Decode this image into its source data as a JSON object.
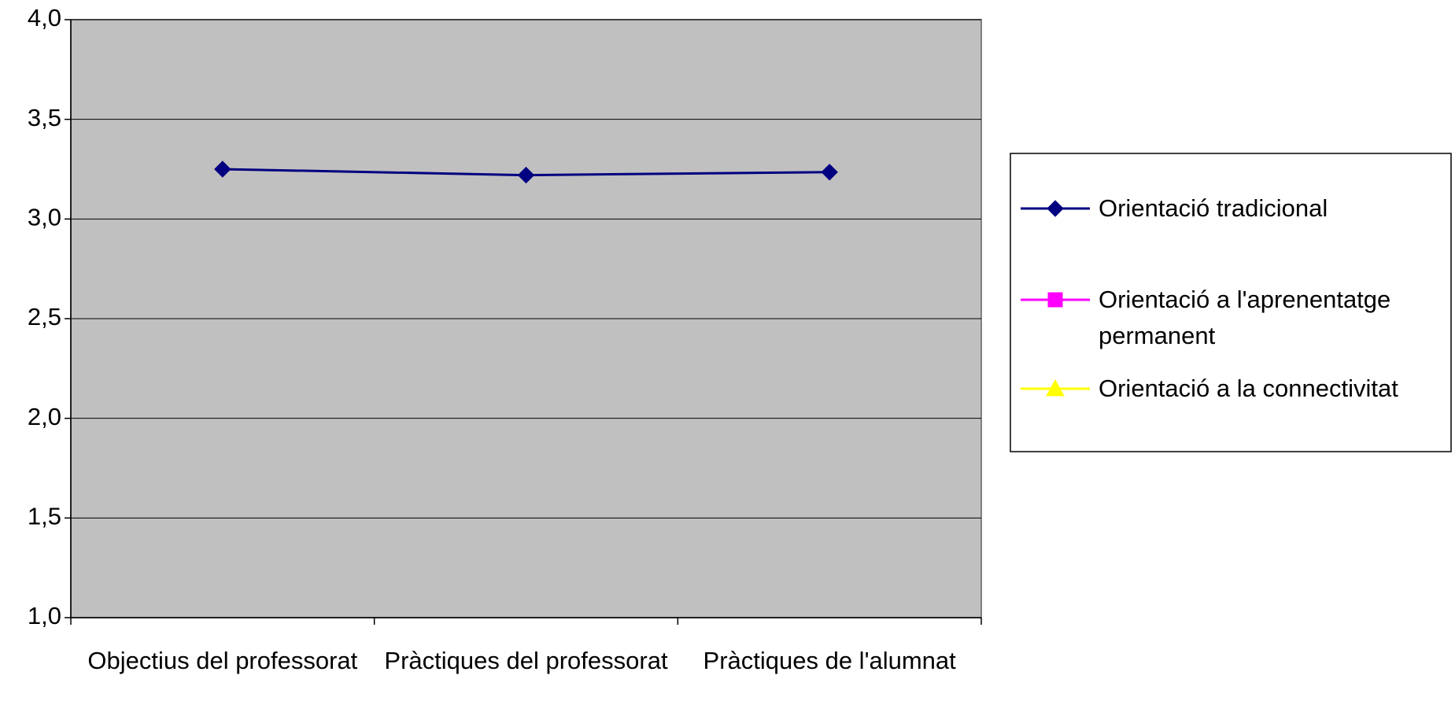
{
  "chart_data": {
    "type": "line",
    "categories": [
      "Objectius del professorat",
      "Pràctiques del professorat",
      "Pràctiques de l'alumnat"
    ],
    "series": [
      {
        "name": "Orientació tradicional",
        "color": "#000080",
        "marker": "diamond",
        "values": [
          3.25,
          3.22,
          3.235
        ]
      },
      {
        "name": "Orientació a l'aprenentatge permanent",
        "color": "#ff00ff",
        "marker": "square",
        "values": [
          null,
          null,
          null
        ]
      },
      {
        "name": "Orientació a la connectivitat",
        "color": "#ffff00",
        "marker": "triangle",
        "values": [
          null,
          null,
          null
        ]
      }
    ],
    "ylim": [
      1,
      4
    ],
    "yticks": [
      {
        "value": 1,
        "label": "1,0"
      },
      {
        "value": 1.5,
        "label": "1,5"
      },
      {
        "value": 2,
        "label": "2,0"
      },
      {
        "value": 2.5,
        "label": "2,5"
      },
      {
        "value": 3,
        "label": "3,0"
      },
      {
        "value": 3.5,
        "label": "3,5"
      },
      {
        "value": 4,
        "label": "4,0"
      }
    ],
    "grid": true,
    "legend": "right",
    "plot_background": "#c0c0c0"
  }
}
